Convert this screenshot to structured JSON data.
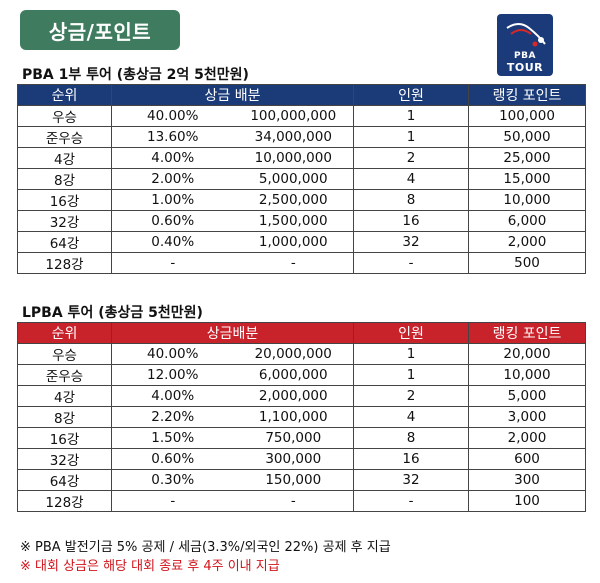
{
  "badge": "상금/포인트",
  "logo": {
    "line1": "PBA",
    "line2": "TOUR"
  },
  "pba": {
    "title": "PBA 1부 투어 (총상금 2억 5천만원)",
    "headers": [
      "순위",
      "상금 배분",
      "인원",
      "랭킹 포인트"
    ],
    "rows": [
      [
        "우승",
        "40.00%",
        "100,000,000",
        "1",
        "100,000"
      ],
      [
        "준우승",
        "13.60%",
        "34,000,000",
        "1",
        "50,000"
      ],
      [
        "4강",
        "4.00%",
        "10,000,000",
        "2",
        "25,000"
      ],
      [
        "8강",
        "2.00%",
        "5,000,000",
        "4",
        "15,000"
      ],
      [
        "16강",
        "1.00%",
        "2,500,000",
        "8",
        "10,000"
      ],
      [
        "32강",
        "0.60%",
        "1,500,000",
        "16",
        "6,000"
      ],
      [
        "64강",
        "0.40%",
        "1,000,000",
        "32",
        "2,000"
      ],
      [
        "128강",
        "-",
        "-",
        "-",
        "500"
      ]
    ]
  },
  "lpba": {
    "title": "LPBA 투어 (총상금 5천만원)",
    "headers": [
      "순위",
      "상금배분",
      "인원",
      "랭킹 포인트"
    ],
    "rows": [
      [
        "우승",
        "40.00%",
        "20,000,000",
        "1",
        "20,000"
      ],
      [
        "준우승",
        "12.00%",
        "6,000,000",
        "1",
        "10,000"
      ],
      [
        "4강",
        "4.00%",
        "2,000,000",
        "2",
        "5,000"
      ],
      [
        "8강",
        "2.20%",
        "1,100,000",
        "4",
        "3,000"
      ],
      [
        "16강",
        "1.50%",
        "750,000",
        "8",
        "2,000"
      ],
      [
        "32강",
        "0.60%",
        "300,000",
        "16",
        "600"
      ],
      [
        "64강",
        "0.30%",
        "150,000",
        "32",
        "300"
      ],
      [
        "128강",
        "-",
        "-",
        "-",
        "100"
      ]
    ]
  },
  "notes": [
    "※ PBA 발전기금 5% 공제 / 세금(3.3%/외국인 22%) 공제 후 지급",
    "※ 대회 상금은 해당 대회 종료 후 4주 이내 지급"
  ],
  "colors": {
    "badge": "#3f7c5f",
    "pba_header": "#1a3a78",
    "lpba_header": "#c8222b",
    "note_red": "#d0151c"
  }
}
